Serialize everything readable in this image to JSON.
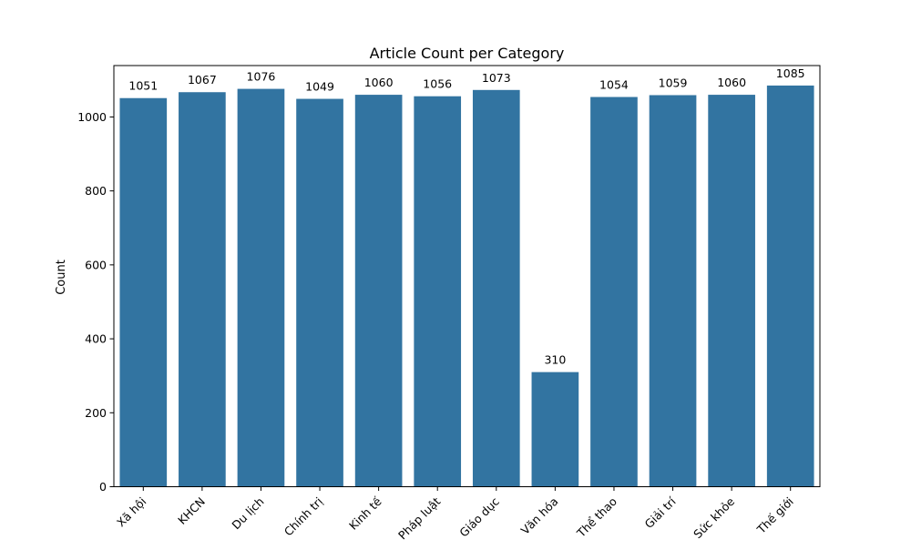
{
  "chart_data": {
    "type": "bar",
    "title": "Article Count per Category",
    "xlabel": "",
    "ylabel": "Count",
    "categories": [
      "Xã hội",
      "KHCN",
      "Du lịch",
      "Chính trị",
      "Kinh tế",
      "Pháp luật",
      "Giáo dục",
      "Văn hóa",
      "Thể thao",
      "Giải trí",
      "Sức khỏe",
      "Thế giới"
    ],
    "values": [
      1051,
      1067,
      1076,
      1049,
      1060,
      1056,
      1073,
      310,
      1054,
      1059,
      1060,
      1085
    ],
    "ylim": [
      0,
      1139
    ],
    "yticks": [
      0,
      200,
      400,
      600,
      800,
      1000
    ],
    "bar_color": "#3274a1",
    "grid": false,
    "xtick_rotation": 45
  }
}
